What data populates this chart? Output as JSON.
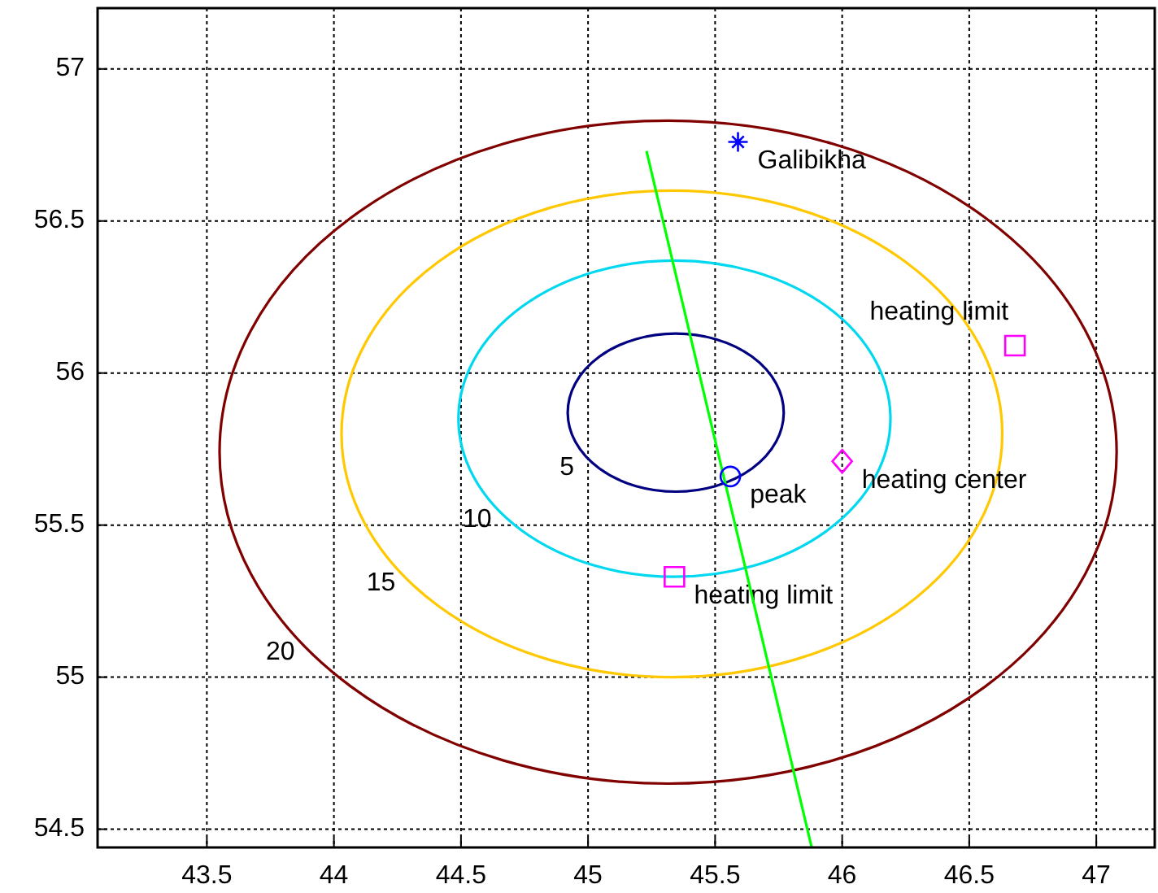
{
  "chart_data": {
    "type": "line",
    "xlim": [
      43.07,
      47.23
    ],
    "ylim": [
      54.44,
      57.2
    ],
    "xticks": [
      43.5,
      44,
      44.5,
      45,
      45.5,
      46,
      46.5,
      47
    ],
    "yticks": [
      54.5,
      55,
      55.5,
      56,
      56.5,
      57
    ],
    "grid": true,
    "line_style": "solid",
    "series": [
      {
        "color": "#00ff00",
        "x": [
          45.23,
          45.88
        ],
        "values": [
          56.73,
          54.44
        ]
      },
      {
        "type": "scatter",
        "marker": "cross",
        "color": "#0000ff",
        "x": [
          45.59
        ],
        "values": [
          56.76
        ]
      },
      {
        "type": "scatter",
        "marker": "square",
        "color": "#ff00ff",
        "x": [
          46.68,
          45.34
        ],
        "values": [
          56.09,
          55.33
        ]
      },
      {
        "type": "scatter",
        "marker": "diamond",
        "color": "#ff00ff",
        "x": [
          46.0
        ],
        "values": [
          55.71
        ]
      },
      {
        "type": "scatter",
        "marker": "circle",
        "color": "#0000ff",
        "x": [
          45.56
        ],
        "values": [
          55.66
        ]
      }
    ],
    "annotations": [
      "5",
      "10",
      "15",
      "20",
      {
        "text": "peak",
        "x": 45.56,
        "y": 55.66
      },
      {
        "text": "Galibikha",
        "x": 45.59,
        "y": 56.76
      },
      {
        "text": "heating limit",
        "x": 46.68,
        "y": 56.09
      },
      {
        "text": "heating limit",
        "x": 45.34,
        "y": 55.33
      },
      {
        "text": "heating center",
        "x": 46.0,
        "y": 55.71
      }
    ]
  }
}
